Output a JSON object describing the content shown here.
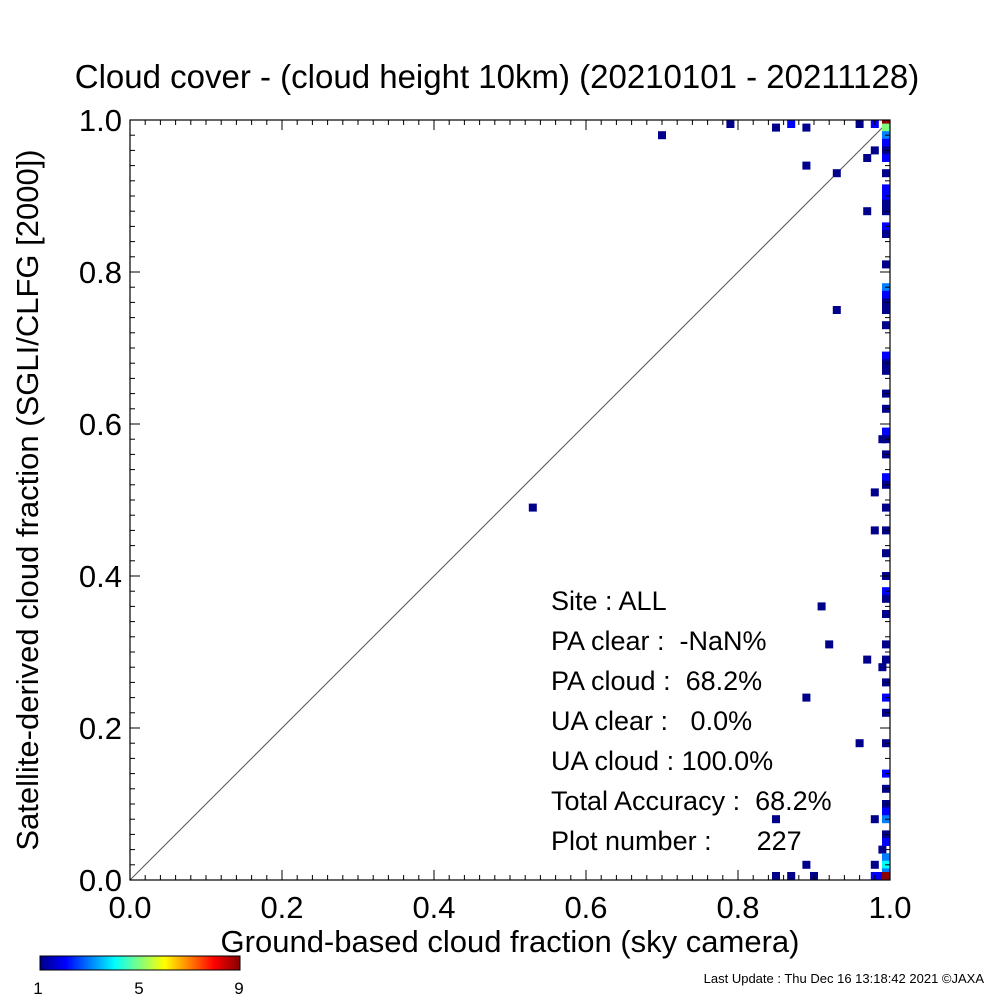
{
  "chart_data": {
    "type": "scatter",
    "title": "Cloud cover - (cloud height 10km)  (20210101 - 20211128)",
    "xlabel": "Ground-based cloud fraction (sky camera)",
    "ylabel": "Satellite-derived cloud fraction (SGLI/CLFG [2000])",
    "xlim": [
      0.0,
      1.0
    ],
    "ylim": [
      0.0,
      1.0
    ],
    "xticks": [
      "0.0",
      "0.2",
      "0.4",
      "0.6",
      "0.8",
      "1.0"
    ],
    "yticks": [
      "0.0",
      "0.2",
      "0.4",
      "0.6",
      "0.8",
      "1.0"
    ],
    "grid": false,
    "reference_line": "1:1 diagonal",
    "colorbar": {
      "label_min": "1",
      "label_mid": "5",
      "label_max": "9",
      "colors": [
        "#00008b",
        "#0000ff",
        "#0080ff",
        "#00ffff",
        "#80ff80",
        "#ffff00",
        "#ff8000",
        "#ff0000",
        "#8b0000"
      ]
    },
    "points": [
      {
        "x": 0.53,
        "y": 0.49,
        "c": 1
      },
      {
        "x": 0.7,
        "y": 0.98,
        "c": 1
      },
      {
        "x": 0.79,
        "y": 1.0,
        "c": 1
      },
      {
        "x": 0.85,
        "y": 0.99,
        "c": 1
      },
      {
        "x": 0.87,
        "y": 1.0,
        "c": 2
      },
      {
        "x": 0.89,
        "y": 0.99,
        "c": 1
      },
      {
        "x": 0.96,
        "y": 1.0,
        "c": 1
      },
      {
        "x": 0.98,
        "y": 1.0,
        "c": 2
      },
      {
        "x": 0.89,
        "y": 0.94,
        "c": 1
      },
      {
        "x": 0.93,
        "y": 0.93,
        "c": 1
      },
      {
        "x": 0.97,
        "y": 0.95,
        "c": 1
      },
      {
        "x": 0.98,
        "y": 0.96,
        "c": 1
      },
      {
        "x": 0.97,
        "y": 0.88,
        "c": 1
      },
      {
        "x": 0.93,
        "y": 0.75,
        "c": 1
      },
      {
        "x": 0.99,
        "y": 0.58,
        "c": 1
      },
      {
        "x": 0.98,
        "y": 0.51,
        "c": 1
      },
      {
        "x": 0.98,
        "y": 0.46,
        "c": 1
      },
      {
        "x": 0.91,
        "y": 0.36,
        "c": 1
      },
      {
        "x": 0.92,
        "y": 0.31,
        "c": 1
      },
      {
        "x": 0.97,
        "y": 0.29,
        "c": 1
      },
      {
        "x": 0.99,
        "y": 0.28,
        "c": 1
      },
      {
        "x": 0.89,
        "y": 0.24,
        "c": 1
      },
      {
        "x": 0.96,
        "y": 0.18,
        "c": 1
      },
      {
        "x": 0.85,
        "y": 0.08,
        "c": 1
      },
      {
        "x": 0.98,
        "y": 0.08,
        "c": 1
      },
      {
        "x": 0.99,
        "y": 0.04,
        "c": 1
      },
      {
        "x": 0.89,
        "y": 0.02,
        "c": 1
      },
      {
        "x": 0.98,
        "y": 0.02,
        "c": 1
      },
      {
        "x": 0.85,
        "y": 0.0,
        "c": 1
      },
      {
        "x": 0.87,
        "y": 0.0,
        "c": 1
      },
      {
        "x": 0.9,
        "y": 0.0,
        "c": 1
      },
      {
        "x": 0.98,
        "y": 0.0,
        "c": 2
      },
      {
        "x": 0.99,
        "y": 0.0,
        "c": 2
      },
      {
        "x": 1.0,
        "y": 1.0,
        "c": 9
      },
      {
        "x": 1.0,
        "y": 0.99,
        "c": 5
      },
      {
        "x": 1.0,
        "y": 0.98,
        "c": 3
      },
      {
        "x": 1.0,
        "y": 0.97,
        "c": 2
      },
      {
        "x": 1.0,
        "y": 0.96,
        "c": 1
      },
      {
        "x": 1.0,
        "y": 0.95,
        "c": 2
      },
      {
        "x": 1.0,
        "y": 0.93,
        "c": 1
      },
      {
        "x": 1.0,
        "y": 0.91,
        "c": 2
      },
      {
        "x": 1.0,
        "y": 0.9,
        "c": 2
      },
      {
        "x": 1.0,
        "y": 0.89,
        "c": 1
      },
      {
        "x": 1.0,
        "y": 0.88,
        "c": 1
      },
      {
        "x": 1.0,
        "y": 0.86,
        "c": 2
      },
      {
        "x": 1.0,
        "y": 0.85,
        "c": 1
      },
      {
        "x": 1.0,
        "y": 0.81,
        "c": 1
      },
      {
        "x": 1.0,
        "y": 0.78,
        "c": 3
      },
      {
        "x": 1.0,
        "y": 0.77,
        "c": 2
      },
      {
        "x": 1.0,
        "y": 0.76,
        "c": 1
      },
      {
        "x": 1.0,
        "y": 0.75,
        "c": 1
      },
      {
        "x": 1.0,
        "y": 0.73,
        "c": 1
      },
      {
        "x": 1.0,
        "y": 0.69,
        "c": 2
      },
      {
        "x": 1.0,
        "y": 0.68,
        "c": 1
      },
      {
        "x": 1.0,
        "y": 0.67,
        "c": 1
      },
      {
        "x": 1.0,
        "y": 0.64,
        "c": 1
      },
      {
        "x": 1.0,
        "y": 0.62,
        "c": 1
      },
      {
        "x": 1.0,
        "y": 0.59,
        "c": 2
      },
      {
        "x": 1.0,
        "y": 0.58,
        "c": 1
      },
      {
        "x": 1.0,
        "y": 0.56,
        "c": 1
      },
      {
        "x": 1.0,
        "y": 0.53,
        "c": 2
      },
      {
        "x": 1.0,
        "y": 0.52,
        "c": 1
      },
      {
        "x": 1.0,
        "y": 0.49,
        "c": 1
      },
      {
        "x": 1.0,
        "y": 0.46,
        "c": 1
      },
      {
        "x": 1.0,
        "y": 0.43,
        "c": 1
      },
      {
        "x": 1.0,
        "y": 0.4,
        "c": 1
      },
      {
        "x": 1.0,
        "y": 0.38,
        "c": 2
      },
      {
        "x": 1.0,
        "y": 0.37,
        "c": 1
      },
      {
        "x": 1.0,
        "y": 0.35,
        "c": 1
      },
      {
        "x": 1.0,
        "y": 0.31,
        "c": 1
      },
      {
        "x": 1.0,
        "y": 0.29,
        "c": 1
      },
      {
        "x": 1.0,
        "y": 0.26,
        "c": 1
      },
      {
        "x": 1.0,
        "y": 0.24,
        "c": 2
      },
      {
        "x": 1.0,
        "y": 0.22,
        "c": 1
      },
      {
        "x": 1.0,
        "y": 0.18,
        "c": 1
      },
      {
        "x": 1.0,
        "y": 0.14,
        "c": 2
      },
      {
        "x": 1.0,
        "y": 0.12,
        "c": 1
      },
      {
        "x": 1.0,
        "y": 0.1,
        "c": 1
      },
      {
        "x": 1.0,
        "y": 0.09,
        "c": 2
      },
      {
        "x": 1.0,
        "y": 0.08,
        "c": 3
      },
      {
        "x": 1.0,
        "y": 0.06,
        "c": 1
      },
      {
        "x": 1.0,
        "y": 0.05,
        "c": 2
      },
      {
        "x": 1.0,
        "y": 0.03,
        "c": 3
      },
      {
        "x": 1.0,
        "y": 0.02,
        "c": 4
      },
      {
        "x": 1.0,
        "y": 0.01,
        "c": 3
      },
      {
        "x": 1.0,
        "y": 0.0,
        "c": 9
      }
    ],
    "annotations": [
      {
        "label": "Site : ALL"
      },
      {
        "label": "PA clear :  -NaN%"
      },
      {
        "label": "PA cloud :  68.2%"
      },
      {
        "label": "UA clear :   0.0%"
      },
      {
        "label": "UA cloud : 100.0%"
      },
      {
        "label": "Total Accuracy :  68.2%"
      },
      {
        "label": "Plot number :      227"
      }
    ]
  },
  "footer": {
    "last_update": "Last Update : Thu Dec 16 13:18:42 2021  ©JAXA"
  }
}
